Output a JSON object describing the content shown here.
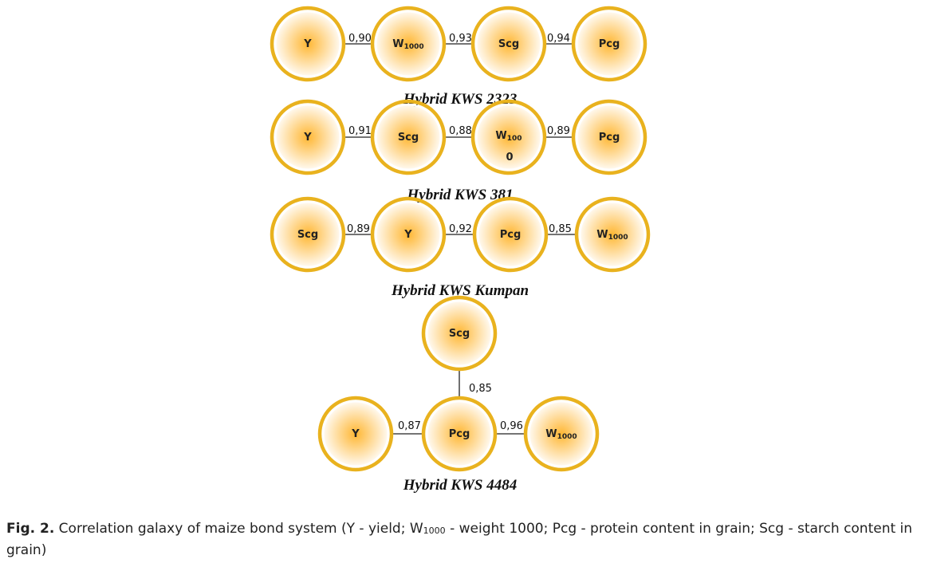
{
  "colors": {
    "ring": "#E9B21E",
    "ring_inner": "#FFFFFF",
    "glow_center": "#FFB733",
    "glow_edge": "#FFF8EC",
    "edge": "#222222"
  },
  "galaxies": [
    {
      "title": "Hybrid KWS 2323",
      "nodes": [
        {
          "id": "n1",
          "label": "Y"
        },
        {
          "id": "n2",
          "label": "W",
          "sub": "1000"
        },
        {
          "id": "n3",
          "label": "Scg"
        },
        {
          "id": "n4",
          "label": "Pcg"
        }
      ],
      "edges": [
        {
          "from": "n1",
          "to": "n2",
          "value": "0,90"
        },
        {
          "from": "n2",
          "to": "n3",
          "value": "0,93"
        },
        {
          "from": "n3",
          "to": "n4",
          "value": "0,94"
        }
      ]
    },
    {
      "title": "Hybrid KWS 381",
      "nodes": [
        {
          "id": "n1",
          "label": "Y"
        },
        {
          "id": "n2",
          "label": "Scg"
        },
        {
          "id": "n3",
          "label": "W",
          "sub": "100",
          "extra": "0"
        },
        {
          "id": "n4",
          "label": "Pcg"
        }
      ],
      "edges": [
        {
          "from": "n1",
          "to": "n2",
          "value": "0,91"
        },
        {
          "from": "n2",
          "to": "n3",
          "value": "0,88"
        },
        {
          "from": "n3",
          "to": "n4",
          "value": "0,89"
        }
      ]
    },
    {
      "title": "Hybrid KWS Kumpan",
      "nodes": [
        {
          "id": "n1",
          "label": "Scg"
        },
        {
          "id": "n2",
          "label": "Y"
        },
        {
          "id": "n3",
          "label": "Pcg"
        },
        {
          "id": "n4",
          "label": "W",
          "sub": "1000"
        }
      ],
      "edges": [
        {
          "from": "n1",
          "to": "n2",
          "value": "0,89"
        },
        {
          "from": "n2",
          "to": "n3",
          "value": "0,92"
        },
        {
          "from": "n3",
          "to": "n4",
          "value": "0,85"
        }
      ]
    },
    {
      "title": "Hybrid KWS 4484",
      "nodes": [
        {
          "id": "n1",
          "label": "Scg"
        },
        {
          "id": "n2",
          "label": "Y"
        },
        {
          "id": "n3",
          "label": "Pcg"
        },
        {
          "id": "n4",
          "label": "W",
          "sub": "1000"
        }
      ],
      "edges": [
        {
          "from": "n1",
          "to": "n3",
          "value": "0,85"
        },
        {
          "from": "n2",
          "to": "n3",
          "value": "0,87"
        },
        {
          "from": "n3",
          "to": "n4",
          "value": "0,96"
        }
      ]
    }
  ],
  "caption": {
    "fig_label": "Fig. 2.",
    "text_1": " Correlation galaxy of maize bond system (Y - yield; W",
    "text_sub": "1000",
    "text_2": " - weight 1000; Pcg - protein content in grain; Scg - starch content in grain)"
  }
}
